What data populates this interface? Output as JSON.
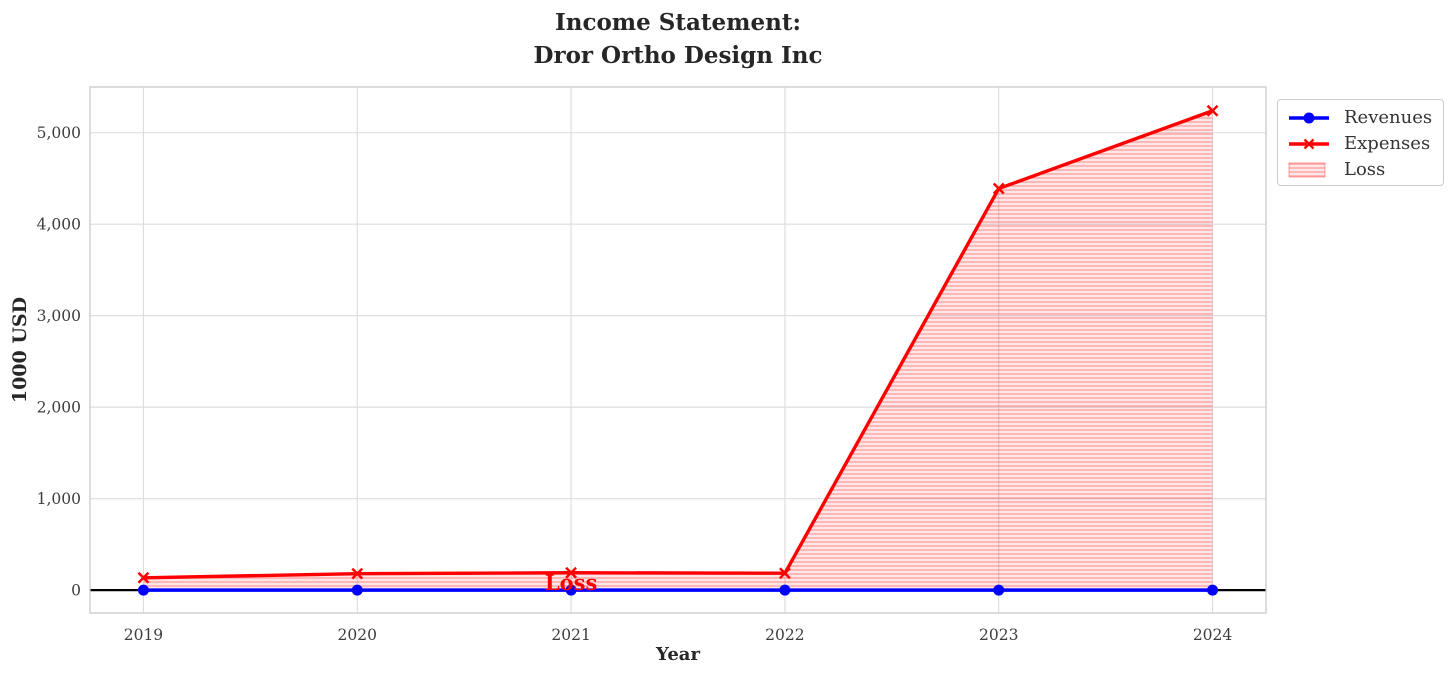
{
  "title": {
    "line1": "Income Statement:",
    "line2": "Dror Ortho Design Inc"
  },
  "chart_data": {
    "type": "line",
    "title": "Income Statement: Dror Ortho Design Inc",
    "xlabel": "Year",
    "ylabel": "1000 USD",
    "x": [
      2019,
      2020,
      2021,
      2022,
      2023,
      2024
    ],
    "xtick_labels": [
      "2019",
      "2020",
      "2021",
      "2022",
      "2023",
      "2024"
    ],
    "yticks": [
      0,
      1000,
      2000,
      3000,
      4000,
      5000
    ],
    "ytick_labels": [
      "0",
      "1,000",
      "2,000",
      "3,000",
      "4,000",
      "5,000"
    ],
    "xlim": [
      2018.75,
      2024.25
    ],
    "ylim": [
      -250,
      5500
    ],
    "grid": true,
    "zero_line": true,
    "legend_position": "upper-right-outside",
    "series": [
      {
        "name": "Revenues",
        "color": "#0000ff",
        "marker": "circle",
        "values": [
          0,
          0,
          0,
          0,
          0,
          0
        ]
      },
      {
        "name": "Expenses",
        "color": "#ff0000",
        "marker": "x",
        "values": [
          135,
          180,
          190,
          185,
          4390,
          5240
        ]
      }
    ],
    "fill_between": {
      "name": "Loss",
      "lower_series": "Revenues",
      "upper_series": "Expenses",
      "facecolor": "rgba(255,0,0,0.10)",
      "hatch": "horizontal-lines",
      "hatch_color": "rgba(255,0,0,0.30)"
    },
    "annotation": {
      "text": "Loss",
      "x": 2021,
      "y": 80,
      "color": "#ff0000"
    }
  },
  "legend": {
    "items": [
      {
        "label": "Revenues",
        "color": "#0000ff",
        "glyph": "line-circle"
      },
      {
        "label": "Expenses",
        "color": "#ff0000",
        "glyph": "line-x"
      },
      {
        "label": "Loss",
        "color": "rgba(255,0,0,0.10)",
        "glyph": "hatched-patch"
      }
    ]
  },
  "colors": {
    "revenues": "#0000ff",
    "expenses": "#ff0000",
    "loss_fill": "rgba(255,0,0,0.10)",
    "grid": "#dcdcdc",
    "text": "#262626",
    "tick_text": "#3d3d3d",
    "zero_line": "#000000"
  }
}
